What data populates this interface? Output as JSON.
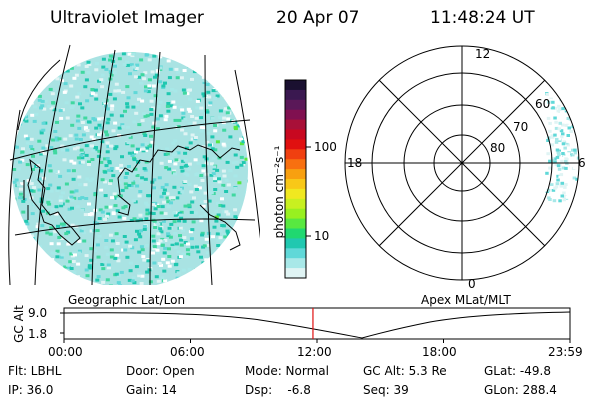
{
  "header": {
    "instrument": "Ultraviolet Imager",
    "date": "20 Apr 07",
    "time": "11:48:24 UT"
  },
  "colorbar": {
    "unit_label": "photon cm⁻²s⁻¹",
    "tick_labels": [
      "100",
      "10"
    ],
    "colors": [
      "#1a1030",
      "#3a1850",
      "#5a1858",
      "#801050",
      "#a81038",
      "#c80820",
      "#e01010",
      "#f04010",
      "#f87010",
      "#f8a010",
      "#f8c818",
      "#f0e820",
      "#c8f020",
      "#98f020",
      "#58e840",
      "#20d870",
      "#20c8b0",
      "#60d8d8",
      "#a8e8e8",
      "#e0f4f4"
    ]
  },
  "left_panel": {
    "projection_label": "Geographic Lat/Lon"
  },
  "right_panel": {
    "projection_label": "Apex MLat/MLT",
    "mlt_labels": [
      "12",
      "18",
      "6",
      "0"
    ],
    "mlat_labels": [
      "60",
      "70",
      "80"
    ]
  },
  "altitude_plot": {
    "y_label": "GC Alt",
    "y_ticks": [
      "9.0",
      "1.8"
    ],
    "x_ticks": [
      "00:00",
      "06:00",
      "12:00",
      "18:00",
      "23:59"
    ],
    "current_time_fraction": 0.492,
    "marker_color": "#e01010"
  },
  "footer": {
    "row1": [
      "Flt: LBHL",
      "Door: Open",
      "Mode: Normal",
      "GC Alt: 5.3 Re",
      "GLat: -49.8"
    ],
    "row2": [
      "IP: 36.0",
      "Gain: 14",
      "Dsp:    -6.8",
      "Seq: 39",
      "GLon: 288.4"
    ]
  }
}
